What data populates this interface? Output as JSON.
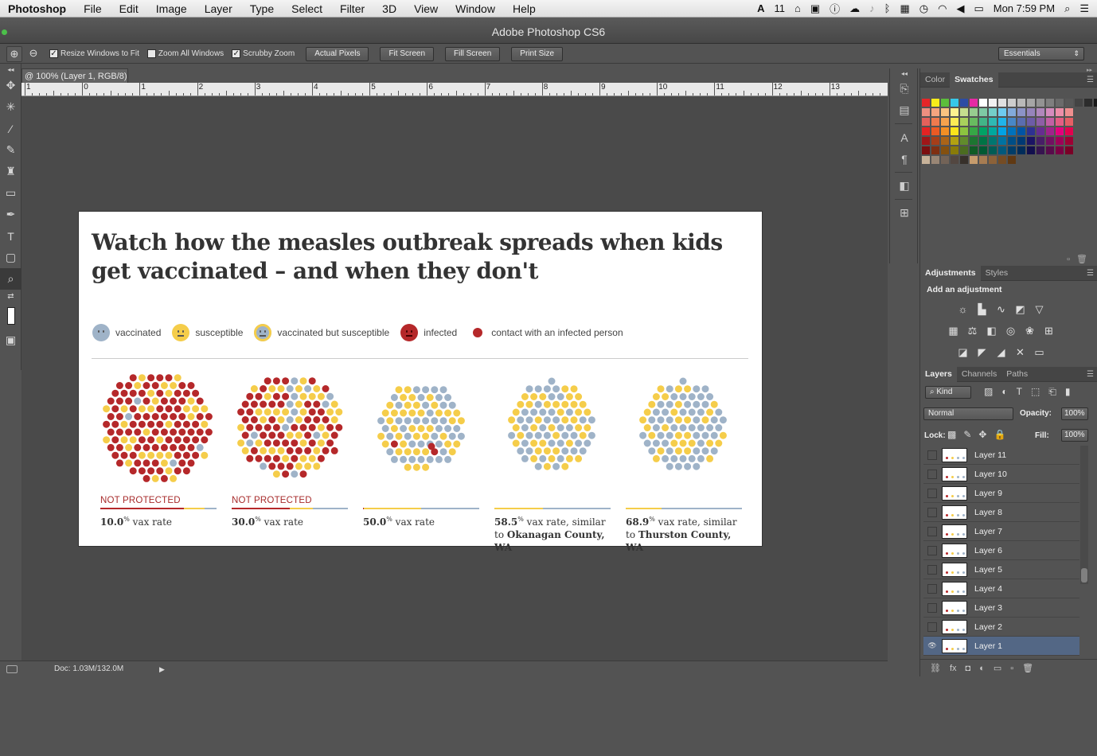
{
  "menubar": {
    "app": "Photoshop",
    "items": [
      "File",
      "Edit",
      "Image",
      "Layer",
      "Type",
      "Select",
      "Filter",
      "3D",
      "View",
      "Window",
      "Help"
    ],
    "status_number": "11",
    "clock": "Mon 7:59 PM"
  },
  "window": {
    "title": "Adobe Photoshop CS6"
  },
  "options": {
    "resize_windows": "Resize Windows to Fit",
    "zoom_all": "Zoom All Windows",
    "scrubby_zoom": "Scrubby Zoom",
    "actual_pixels": "Actual Pixels",
    "fit_screen": "Fit Screen",
    "fill_screen": "Fill Screen",
    "print_size": "Print Size",
    "workspace": "Essentials"
  },
  "document": {
    "tab": "@ 100% (Layer 1, RGB/8)",
    "ruler_labels": [
      "1",
      "0",
      "1",
      "2",
      "3",
      "4",
      "5",
      "6",
      "7",
      "8",
      "9",
      "10",
      "11",
      "12",
      "13"
    ],
    "status": "Doc: 1.03M/132.0M"
  },
  "infographic": {
    "title": "Watch how the measles outbreak spreads when kids get vaccinated – and when they don't",
    "legend": [
      {
        "label": "vaccinated",
        "color": "#9fb3c8"
      },
      {
        "label": "susceptible",
        "color": "#f5cd4a"
      },
      {
        "label": "vaccinated but susceptible",
        "color": "#b9c9a0"
      },
      {
        "label": "infected",
        "color": "#b5282a"
      },
      {
        "label": "contact with an infected person",
        "color": "#b5282a"
      }
    ],
    "colors": {
      "vaccinated": "#9fb3c8",
      "susceptible": "#f5cd4a",
      "infected": "#b5282a"
    },
    "panels": [
      {
        "warning": "NOT PROTECTED",
        "rate": "10.0",
        "rate_sup": "%",
        "rate_text": " vax rate",
        "line2_pre": "",
        "line2_bold": "",
        "infected_share": 0.72,
        "vaccinated_share": 0.1
      },
      {
        "warning": "NOT PROTECTED",
        "rate": "30.0",
        "rate_sup": "%",
        "rate_text": " vax rate",
        "line2_pre": "",
        "line2_bold": "",
        "infected_share": 0.5,
        "vaccinated_share": 0.3
      },
      {
        "warning": "",
        "rate": "50.0",
        "rate_sup": "%",
        "rate_text": " vax rate",
        "line2_pre": "",
        "line2_bold": "",
        "infected_share": 0.01,
        "vaccinated_share": 0.5
      },
      {
        "warning": "",
        "rate": "58.5",
        "rate_sup": "%",
        "rate_text": " vax rate, similar",
        "line2_pre": "to ",
        "line2_bold": "Okanagan County, WA",
        "infected_share": 0,
        "vaccinated_share": 0.585
      },
      {
        "warning": "",
        "rate": "68.9",
        "rate_sup": "%",
        "rate_text": " vax rate, similar",
        "line2_pre": "to ",
        "line2_bold": "Thurston County, WA",
        "infected_share": 0,
        "vaccinated_share": 0.689
      }
    ]
  },
  "panels_right": {
    "color_tabs": [
      "Color",
      "Swatches"
    ],
    "adjust_tabs": [
      "Adjustments",
      "Styles"
    ],
    "add_adjustment": "Add an adjustment",
    "layer_tabs": [
      "Layers",
      "Channels",
      "Paths"
    ],
    "kind": "Kind",
    "blend_mode": "Normal",
    "opacity_label": "Opacity:",
    "opacity": "100%",
    "lock_label": "Lock:",
    "fill_label": "Fill:",
    "fill": "100%",
    "layers": [
      "Layer 11",
      "Layer 10",
      "Layer 9",
      "Layer 8",
      "Layer 7",
      "Layer 6",
      "Layer 5",
      "Layer 4",
      "Layer 3",
      "Layer 2",
      "Layer 1"
    ],
    "active_layer": "Layer 1"
  }
}
